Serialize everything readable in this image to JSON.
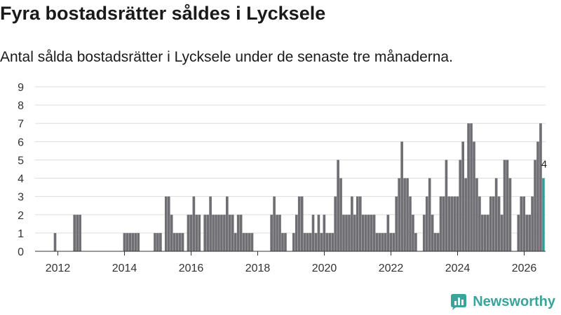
{
  "header": {
    "title": "Fyra bostadsrätter såldes i Lycksele",
    "subtitle": "Antal sålda bostadsrätter i Lycksele under de senaste tre månaderna."
  },
  "brand": {
    "name": "Newsworthy",
    "icon": "newsworthy-logo-icon"
  },
  "colors": {
    "bar": "#6e6e73",
    "highlight": "#2aa198",
    "grid": "#dddddd",
    "axis": "#333333",
    "brand": "#3aa39a"
  },
  "chart_data": {
    "type": "bar",
    "title": "Fyra bostadsrätter såldes i Lycksele",
    "xlabel": "",
    "ylabel": "",
    "ylim": [
      0,
      9
    ],
    "y_ticks": [
      "0",
      "1",
      "2",
      "3",
      "4",
      "5",
      "6",
      "7",
      "8",
      "9"
    ],
    "x_tick_labels": [
      "2012",
      "2014",
      "2016",
      "2018",
      "2020",
      "2022",
      "2024",
      "2026"
    ],
    "grid": true,
    "x_start_year": 2011.25,
    "step_years": 0.0833,
    "values": [
      0,
      0,
      0,
      0,
      0,
      0,
      0,
      0,
      1,
      0,
      0,
      0,
      0,
      0,
      0,
      2,
      2,
      2,
      0,
      0,
      0,
      0,
      0,
      0,
      0,
      0,
      0,
      0,
      0,
      0,
      0,
      0,
      0,
      1,
      1,
      1,
      1,
      1,
      1,
      0,
      0,
      0,
      0,
      0,
      1,
      1,
      1,
      0,
      3,
      3,
      2,
      1,
      1,
      1,
      1,
      0,
      2,
      2,
      3,
      2,
      2,
      0,
      2,
      2,
      3,
      2,
      2,
      2,
      2,
      2,
      3,
      2,
      2,
      1,
      2,
      2,
      1,
      1,
      1,
      1,
      0,
      0,
      0,
      0,
      0,
      0,
      2,
      3,
      2,
      2,
      1,
      1,
      0,
      0,
      1,
      2,
      3,
      3,
      1,
      1,
      1,
      2,
      1,
      2,
      1,
      2,
      1,
      1,
      1,
      3,
      5,
      4,
      2,
      2,
      2,
      3,
      2,
      3,
      3,
      2,
      2,
      2,
      2,
      2,
      1,
      1,
      1,
      1,
      2,
      1,
      1,
      3,
      4,
      6,
      4,
      4,
      3,
      2,
      1,
      0,
      0,
      2,
      3,
      4,
      2,
      1,
      1,
      3,
      3,
      5,
      3,
      3,
      3,
      3,
      5,
      6,
      4,
      7,
      7,
      6,
      4,
      3,
      2,
      2,
      2,
      3,
      3,
      4,
      3,
      2,
      5,
      5,
      4,
      0,
      0,
      2,
      3,
      3,
      2,
      2,
      3,
      5,
      6,
      7,
      4
    ],
    "highlight_last": true,
    "annotation": {
      "label": "4"
    }
  }
}
